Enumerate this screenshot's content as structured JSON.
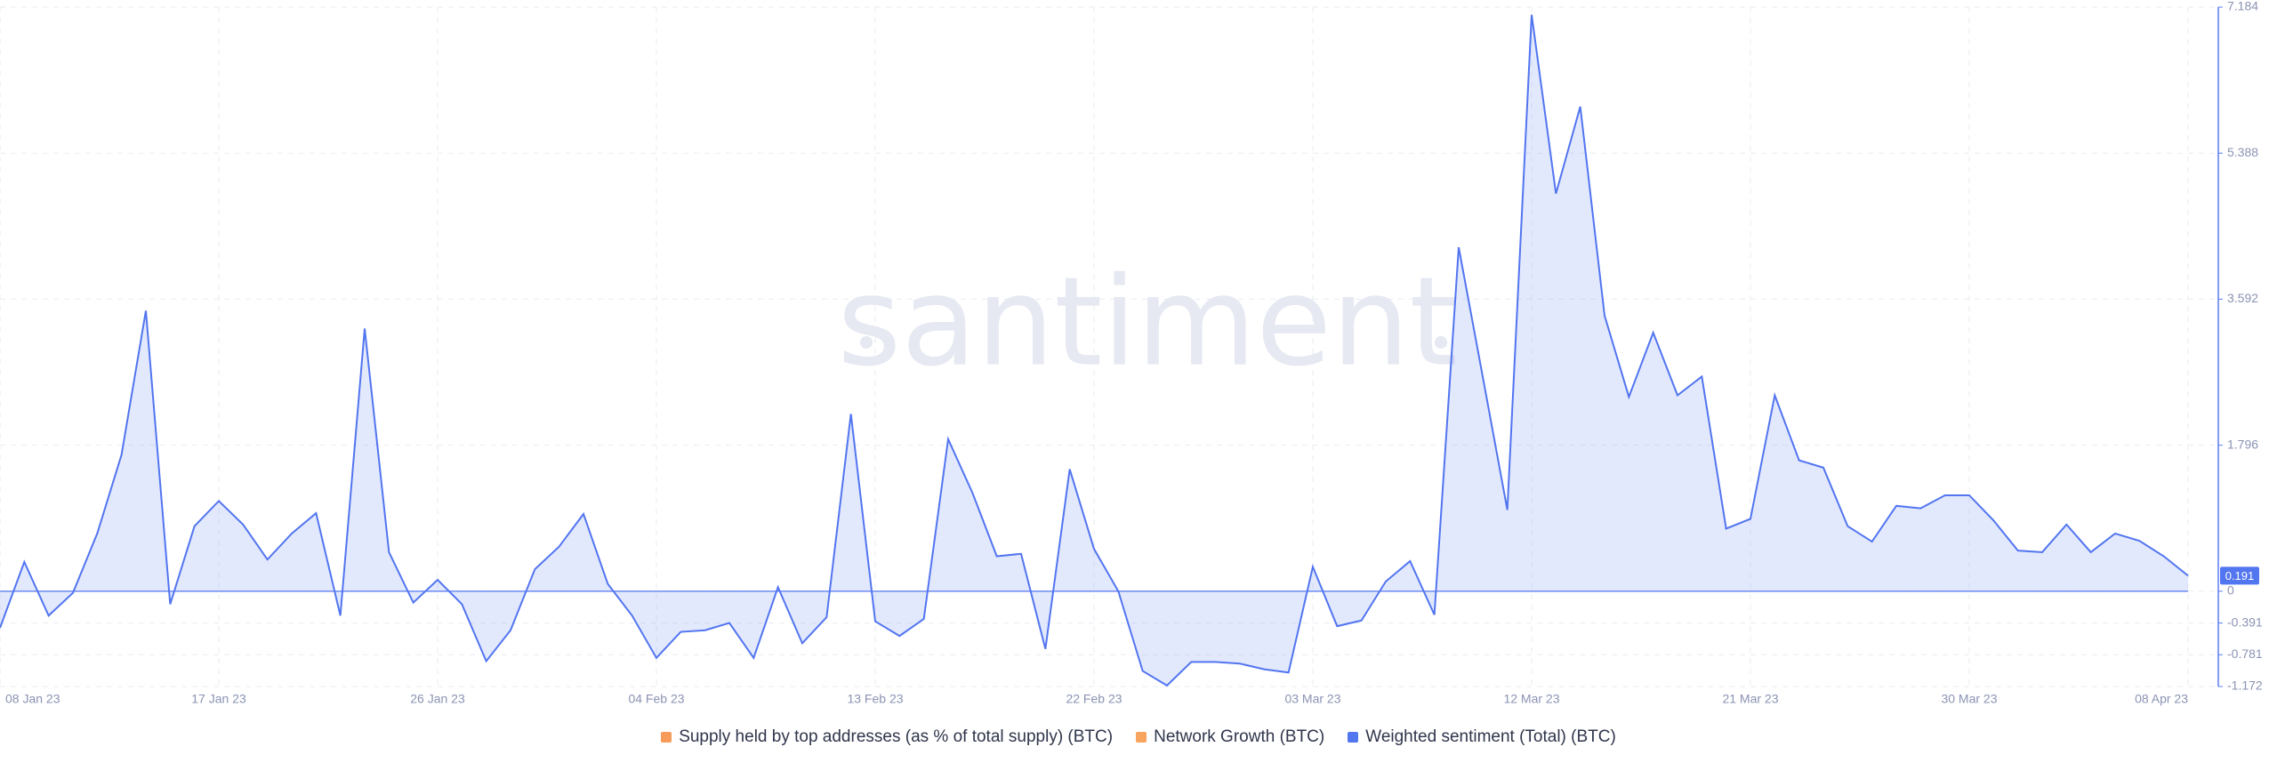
{
  "chart_data": {
    "type": "area",
    "watermark": "santiment",
    "categories": [
      "08 Jan 23",
      null,
      null,
      null,
      null,
      null,
      null,
      null,
      null,
      "17 Jan 23",
      null,
      null,
      null,
      null,
      null,
      null,
      null,
      null,
      "26 Jan 23",
      null,
      null,
      null,
      null,
      null,
      null,
      null,
      null,
      "04 Feb 23",
      null,
      null,
      null,
      null,
      null,
      null,
      null,
      null,
      "13 Feb 23",
      null,
      null,
      null,
      null,
      null,
      null,
      null,
      null,
      "22 Feb 23",
      null,
      null,
      null,
      null,
      null,
      null,
      null,
      null,
      "03 Mar 23",
      null,
      null,
      null,
      null,
      null,
      null,
      null,
      null,
      "12 Mar 23",
      null,
      null,
      null,
      null,
      null,
      null,
      null,
      null,
      "21 Mar 23",
      null,
      null,
      null,
      null,
      null,
      null,
      null,
      null,
      "30 Mar 23",
      null,
      null,
      null,
      null,
      null,
      null,
      null,
      null,
      "08 Apr 23"
    ],
    "series": [
      {
        "name": "Weighted sentiment (Total) (BTC)",
        "color": "#5275f0",
        "values": [
          -0.45,
          0.36,
          -0.3,
          -0.02,
          0.71,
          1.68,
          3.45,
          -0.16,
          0.8,
          1.11,
          0.82,
          0.39,
          0.71,
          0.96,
          -0.3,
          3.23,
          0.48,
          -0.14,
          0.14,
          -0.16,
          -0.86,
          -0.48,
          0.27,
          0.55,
          0.95,
          0.09,
          -0.3,
          -0.82,
          -0.5,
          -0.48,
          -0.39,
          -0.82,
          0.05,
          -0.64,
          -0.32,
          2.18,
          -0.37,
          -0.55,
          -0.34,
          1.87,
          1.21,
          0.43,
          0.46,
          -0.71,
          1.5,
          0.52,
          0,
          -0.98,
          -1.16,
          -0.87,
          -0.87,
          -0.89,
          -0.96,
          -1.0,
          0.3,
          -0.43,
          -0.36,
          0.12,
          0.37,
          -0.29,
          4.23,
          2.62,
          1.0,
          7.09,
          4.89,
          5.96,
          3.39,
          2.39,
          3.18,
          2.41,
          2.64,
          0.77,
          0.89,
          2.41,
          1.61,
          1.52,
          0.8,
          0.61,
          1.05,
          1.02,
          1.18,
          1.18,
          0.87,
          0.5,
          0.48,
          0.82,
          0.48,
          0.71,
          0.62,
          0.43,
          0.191
        ]
      }
    ],
    "legend": [
      {
        "name": "Supply held by top addresses (as % of total supply) (BTC)",
        "color": "#f79b5a"
      },
      {
        "name": "Network Growth (BTC)",
        "color": "#f7a45e"
      },
      {
        "name": "Weighted sentiment (Total) (BTC)",
        "color": "#5275f0"
      }
    ],
    "ylim": [
      -1.172,
      7.184
    ],
    "yticks": [
      -1.172,
      -0.781,
      -0.391,
      0,
      1.796,
      3.592,
      5.388,
      7.184
    ],
    "grid": true
  }
}
